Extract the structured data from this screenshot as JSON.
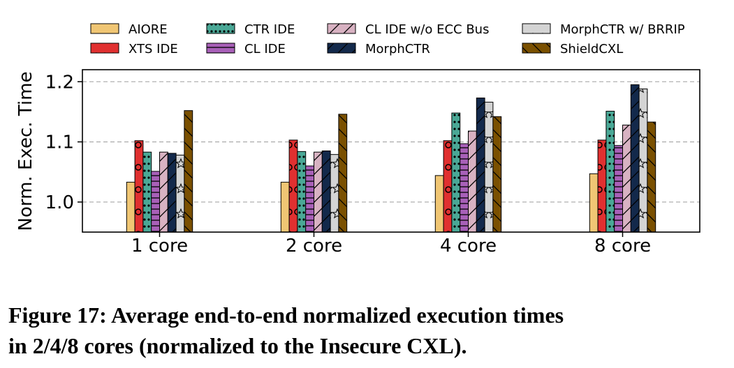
{
  "chart_data": {
    "type": "bar",
    "categories": [
      "1 core",
      "2 core",
      "4 core",
      "8 core"
    ],
    "ylabel": "Norm. Exec. Time",
    "xlabel": "",
    "ylim": [
      0.95,
      1.22
    ],
    "yticks": [
      "1.0",
      "1.1",
      "1.2"
    ],
    "ytick_values": [
      1.0,
      1.1,
      1.2
    ],
    "grid": "horizontal dashed",
    "legend_position": "top",
    "series": [
      {
        "name": "AIORE",
        "color": "#f0c674",
        "pattern": "none",
        "values": [
          1.033,
          1.033,
          1.044,
          1.047
        ]
      },
      {
        "name": "XTS IDE",
        "color": "#e03030",
        "pattern": "circles",
        "values": [
          1.102,
          1.103,
          1.102,
          1.103
        ]
      },
      {
        "name": "CTR IDE",
        "color": "#4aa896",
        "pattern": "dots",
        "values": [
          1.083,
          1.084,
          1.148,
          1.151
        ]
      },
      {
        "name": "CL IDE",
        "color": "#a860b8",
        "pattern": "horizontal",
        "values": [
          1.051,
          1.06,
          1.097,
          1.094
        ]
      },
      {
        "name": "CL IDE w/o ECC Bus",
        "color": "#d8b2c2",
        "pattern": "slash",
        "values": [
          1.083,
          1.083,
          1.118,
          1.128
        ]
      },
      {
        "name": "MorphCTR",
        "color": "#13294b",
        "pattern": "slash",
        "values": [
          1.081,
          1.085,
          1.173,
          1.195
        ]
      },
      {
        "name": "MorphCTR w/ BRRIP",
        "color": "#d4d4d4",
        "pattern": "stars",
        "values": [
          1.078,
          1.079,
          1.166,
          1.188
        ]
      },
      {
        "name": "ShieldCXL",
        "color": "#7a5000",
        "pattern": "backslash",
        "values": [
          1.152,
          1.146,
          1.142,
          1.133
        ]
      }
    ]
  },
  "caption": {
    "line1": "Figure 17: Average end-to-end normalized execution times",
    "line2": "in 2/4/8 cores (normalized to the Insecure CXL)."
  }
}
